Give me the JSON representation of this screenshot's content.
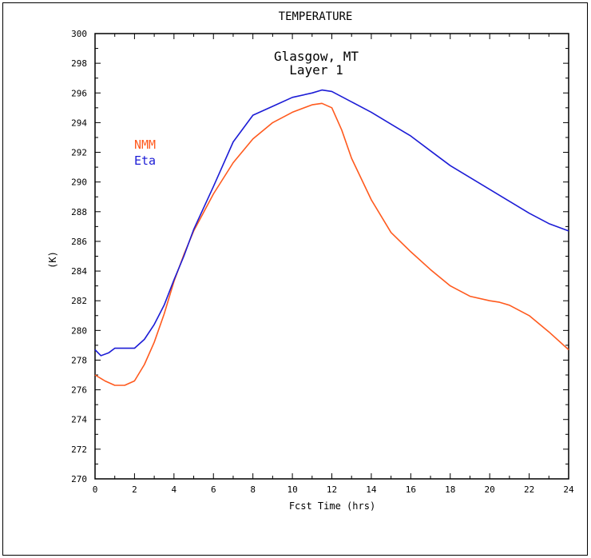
{
  "chart_data": {
    "type": "line",
    "title": "TEMPERATURE",
    "subtitle_lines": [
      "Glasgow, MT",
      "Layer 1"
    ],
    "xlabel": "Fcst Time (hrs)",
    "ylabel": "(K)",
    "xlim": [
      0,
      24
    ],
    "ylim": [
      270,
      300
    ],
    "xticks": [
      "0",
      "2",
      "4",
      "6",
      "8",
      "10",
      "12",
      "14",
      "16",
      "18",
      "20",
      "22",
      "24"
    ],
    "yticks": [
      "270",
      "272",
      "274",
      "276",
      "278",
      "280",
      "282",
      "284",
      "286",
      "288",
      "290",
      "292",
      "294",
      "296",
      "298",
      "300"
    ],
    "legend_position": "left",
    "grid": false,
    "series": [
      {
        "name": "NMM",
        "color": "#ff5a1e",
        "x": [
          0,
          0.5,
          1,
          1.5,
          2,
          2.5,
          3,
          3.5,
          4,
          4.5,
          5,
          6,
          7,
          8,
          9,
          10,
          11,
          11.5,
          12,
          12.5,
          13,
          14,
          15,
          16,
          17,
          18,
          19,
          20,
          20.5,
          21,
          22,
          23,
          24
        ],
        "y": [
          277.0,
          276.6,
          276.3,
          276.3,
          276.6,
          277.7,
          279.2,
          281.1,
          283.3,
          285.1,
          286.7,
          289.2,
          291.3,
          292.9,
          294.0,
          294.7,
          295.2,
          295.3,
          295.0,
          293.5,
          291.6,
          288.8,
          286.6,
          285.3,
          284.1,
          283.0,
          282.3,
          282.0,
          281.9,
          281.7,
          281.0,
          279.9,
          278.7
        ]
      },
      {
        "name": "Eta",
        "color": "#1c1cd6",
        "x": [
          0,
          0.3,
          0.7,
          1,
          1.5,
          2,
          2.5,
          3,
          3.5,
          4,
          4.5,
          5,
          6,
          7,
          8,
          9,
          10,
          11,
          11.5,
          12,
          13,
          14,
          15,
          16,
          17,
          18,
          19,
          20,
          21,
          22,
          23,
          24
        ],
        "y": [
          278.7,
          278.3,
          278.5,
          278.8,
          278.8,
          278.8,
          279.4,
          280.4,
          281.7,
          283.4,
          285.0,
          286.8,
          289.7,
          292.7,
          294.5,
          295.1,
          295.7,
          296.0,
          296.2,
          296.1,
          295.4,
          294.7,
          293.9,
          293.1,
          292.1,
          291.1,
          290.3,
          289.5,
          288.7,
          287.9,
          287.2,
          286.7
        ]
      }
    ]
  }
}
